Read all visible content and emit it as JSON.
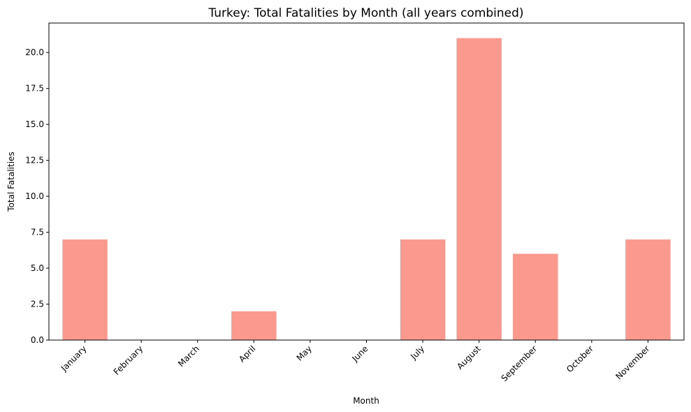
{
  "chart_data": {
    "type": "bar",
    "title": "Turkey: Total Fatalities by Month (all years combined)",
    "xlabel": "Month",
    "ylabel": "Total Fatalities",
    "categories": [
      "January",
      "February",
      "March",
      "April",
      "May",
      "June",
      "July",
      "August",
      "September",
      "October",
      "November"
    ],
    "values": [
      7,
      0,
      0,
      2,
      0,
      0,
      7,
      21,
      6,
      0,
      7
    ],
    "ylim": [
      0,
      22.05
    ],
    "yticks": [
      0.0,
      2.5,
      5.0,
      7.5,
      10.0,
      12.5,
      15.0,
      17.5,
      20.0
    ],
    "ytick_labels": [
      "0.0",
      "2.5",
      "5.0",
      "7.5",
      "10.0",
      "12.5",
      "15.0",
      "17.5",
      "20.0"
    ],
    "bar_color": "#fa8072",
    "grid": false,
    "legend": "none"
  }
}
